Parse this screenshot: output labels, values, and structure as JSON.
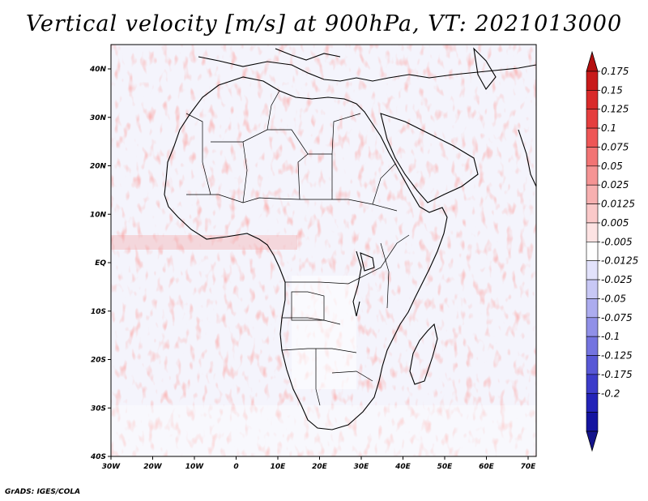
{
  "title": "Vertical velocity [m/s] at 900hPa, VT: 2021013000",
  "credit": "GrADS: IGES/COLA",
  "map": {
    "region": "Africa",
    "variable": "Vertical velocity",
    "level": "900hPa",
    "lon_labels": [
      "30W",
      "20W",
      "10W",
      "0",
      "10E",
      "20E",
      "30E",
      "40E",
      "50E",
      "60E",
      "70E"
    ],
    "lat_labels": [
      "40N",
      "30N",
      "20N",
      "10N",
      "EQ",
      "10S",
      "20S",
      "30S",
      "40S"
    ]
  },
  "colorbar": {
    "levels": [
      "0.175",
      "0.15",
      "0.125",
      "0.1",
      "0.075",
      "0.05",
      "0.025",
      "0.0125",
      "0.005",
      "-0.005",
      "-0.0125",
      "-0.025",
      "-0.05",
      "-0.075",
      "-0.1",
      "-0.125",
      "-0.175",
      "-0.2"
    ],
    "colors": [
      "#c81a1a",
      "#d92a2a",
      "#e53e3e",
      "#ee5656",
      "#f27474",
      "#f59494",
      "#f7b0b0",
      "#fac9c9",
      "#fde3e3",
      "#ffffff",
      "#e2e2fb",
      "#c8c8f5",
      "#acacef",
      "#9090e8",
      "#7474e0",
      "#5858d6",
      "#3c3cca",
      "#2323b8",
      "#1414a0"
    ],
    "tip_top": "#b40f0f",
    "tip_bottom": "#14148c"
  }
}
